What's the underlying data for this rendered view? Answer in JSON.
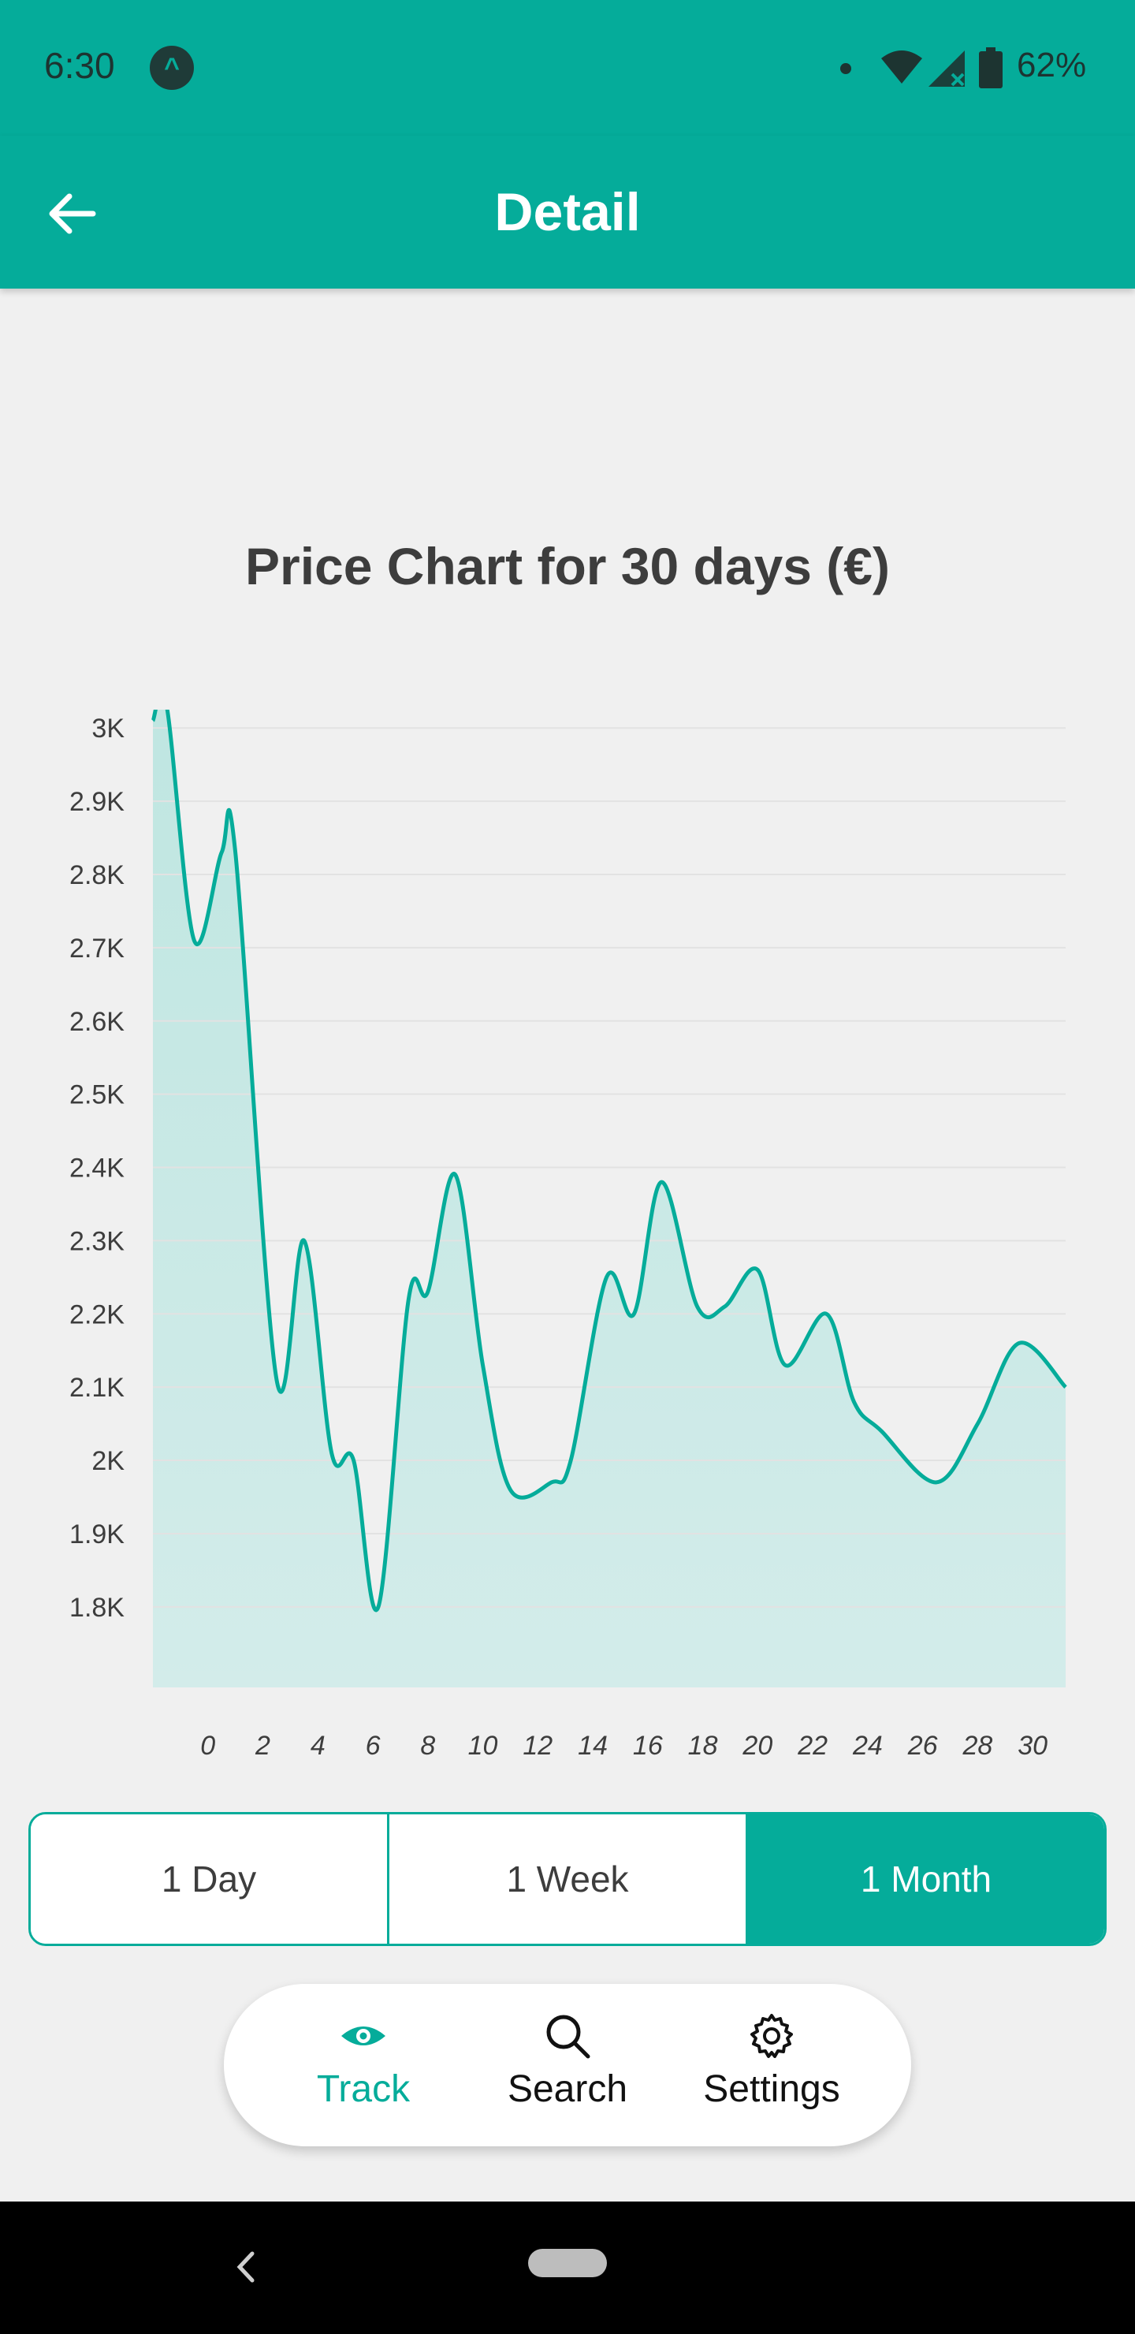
{
  "status_bar": {
    "time": "6:30",
    "app_icon_glyph": "^",
    "battery": "62%",
    "icons": [
      "wifi-icon",
      "signal-icon",
      "battery-icon"
    ]
  },
  "app_bar": {
    "title": "Detail",
    "back_icon": "arrow-left-icon"
  },
  "colors": {
    "primary": "#05ac9a",
    "fill": "#c5e8e4",
    "text": "#3d3d3d"
  },
  "chart_data": {
    "type": "area",
    "title": "Price Chart for 30 days (€)",
    "x_ticks": [
      0,
      2,
      4,
      6,
      8,
      10,
      12,
      14,
      16,
      18,
      20,
      22,
      24,
      26,
      28,
      30
    ],
    "y_ticks": [
      {
        "value": 1800,
        "label": "1.8K"
      },
      {
        "value": 1900,
        "label": "1.9K"
      },
      {
        "value": 2000,
        "label": "2K"
      },
      {
        "value": 2100,
        "label": "2.1K"
      },
      {
        "value": 2200,
        "label": "2.2K"
      },
      {
        "value": 2300,
        "label": "2.3K"
      },
      {
        "value": 2400,
        "label": "2.4K"
      },
      {
        "value": 2500,
        "label": "2.5K"
      },
      {
        "value": 2600,
        "label": "2.6K"
      },
      {
        "value": 2700,
        "label": "2.7K"
      },
      {
        "value": 2800,
        "label": "2.8K"
      },
      {
        "value": 2900,
        "label": "2.9K"
      },
      {
        "value": 3000,
        "label": "3K"
      }
    ],
    "ylim": [
      1690,
      3025
    ],
    "xlim": [
      -2,
      31.2
    ],
    "grid": true,
    "series": [
      {
        "x": [
          -2,
          -1.5,
          -0.5,
          0.5,
          1,
          2.5,
          3.5,
          4.5,
          5.3,
          6.2,
          7.3,
          8,
          9,
          10,
          11,
          12.5,
          13.2,
          14.5,
          15.5,
          16.5,
          17.8,
          18.8,
          20,
          21,
          22.5,
          23.5,
          24.5,
          26.5,
          28,
          29.5,
          31.2
        ],
        "y": [
          3010,
          3030,
          2710,
          2830,
          2830,
          2110,
          2300,
          2010,
          2000,
          1800,
          2220,
          2230,
          2390,
          2130,
          1960,
          1970,
          2000,
          2250,
          2200,
          2380,
          2210,
          2210,
          2260,
          2130,
          2200,
          2080,
          2040,
          1970,
          2050,
          2160,
          2100
        ]
      }
    ]
  },
  "range_selector": {
    "options": [
      "1 Day",
      "1 Week",
      "1 Month"
    ],
    "selected": "1 Month"
  },
  "bottom_nav": {
    "items": [
      {
        "label": "Track",
        "icon": "eye-icon",
        "active": true
      },
      {
        "label": "Search",
        "icon": "search-icon",
        "active": false
      },
      {
        "label": "Settings",
        "icon": "gear-icon",
        "active": false
      }
    ]
  }
}
